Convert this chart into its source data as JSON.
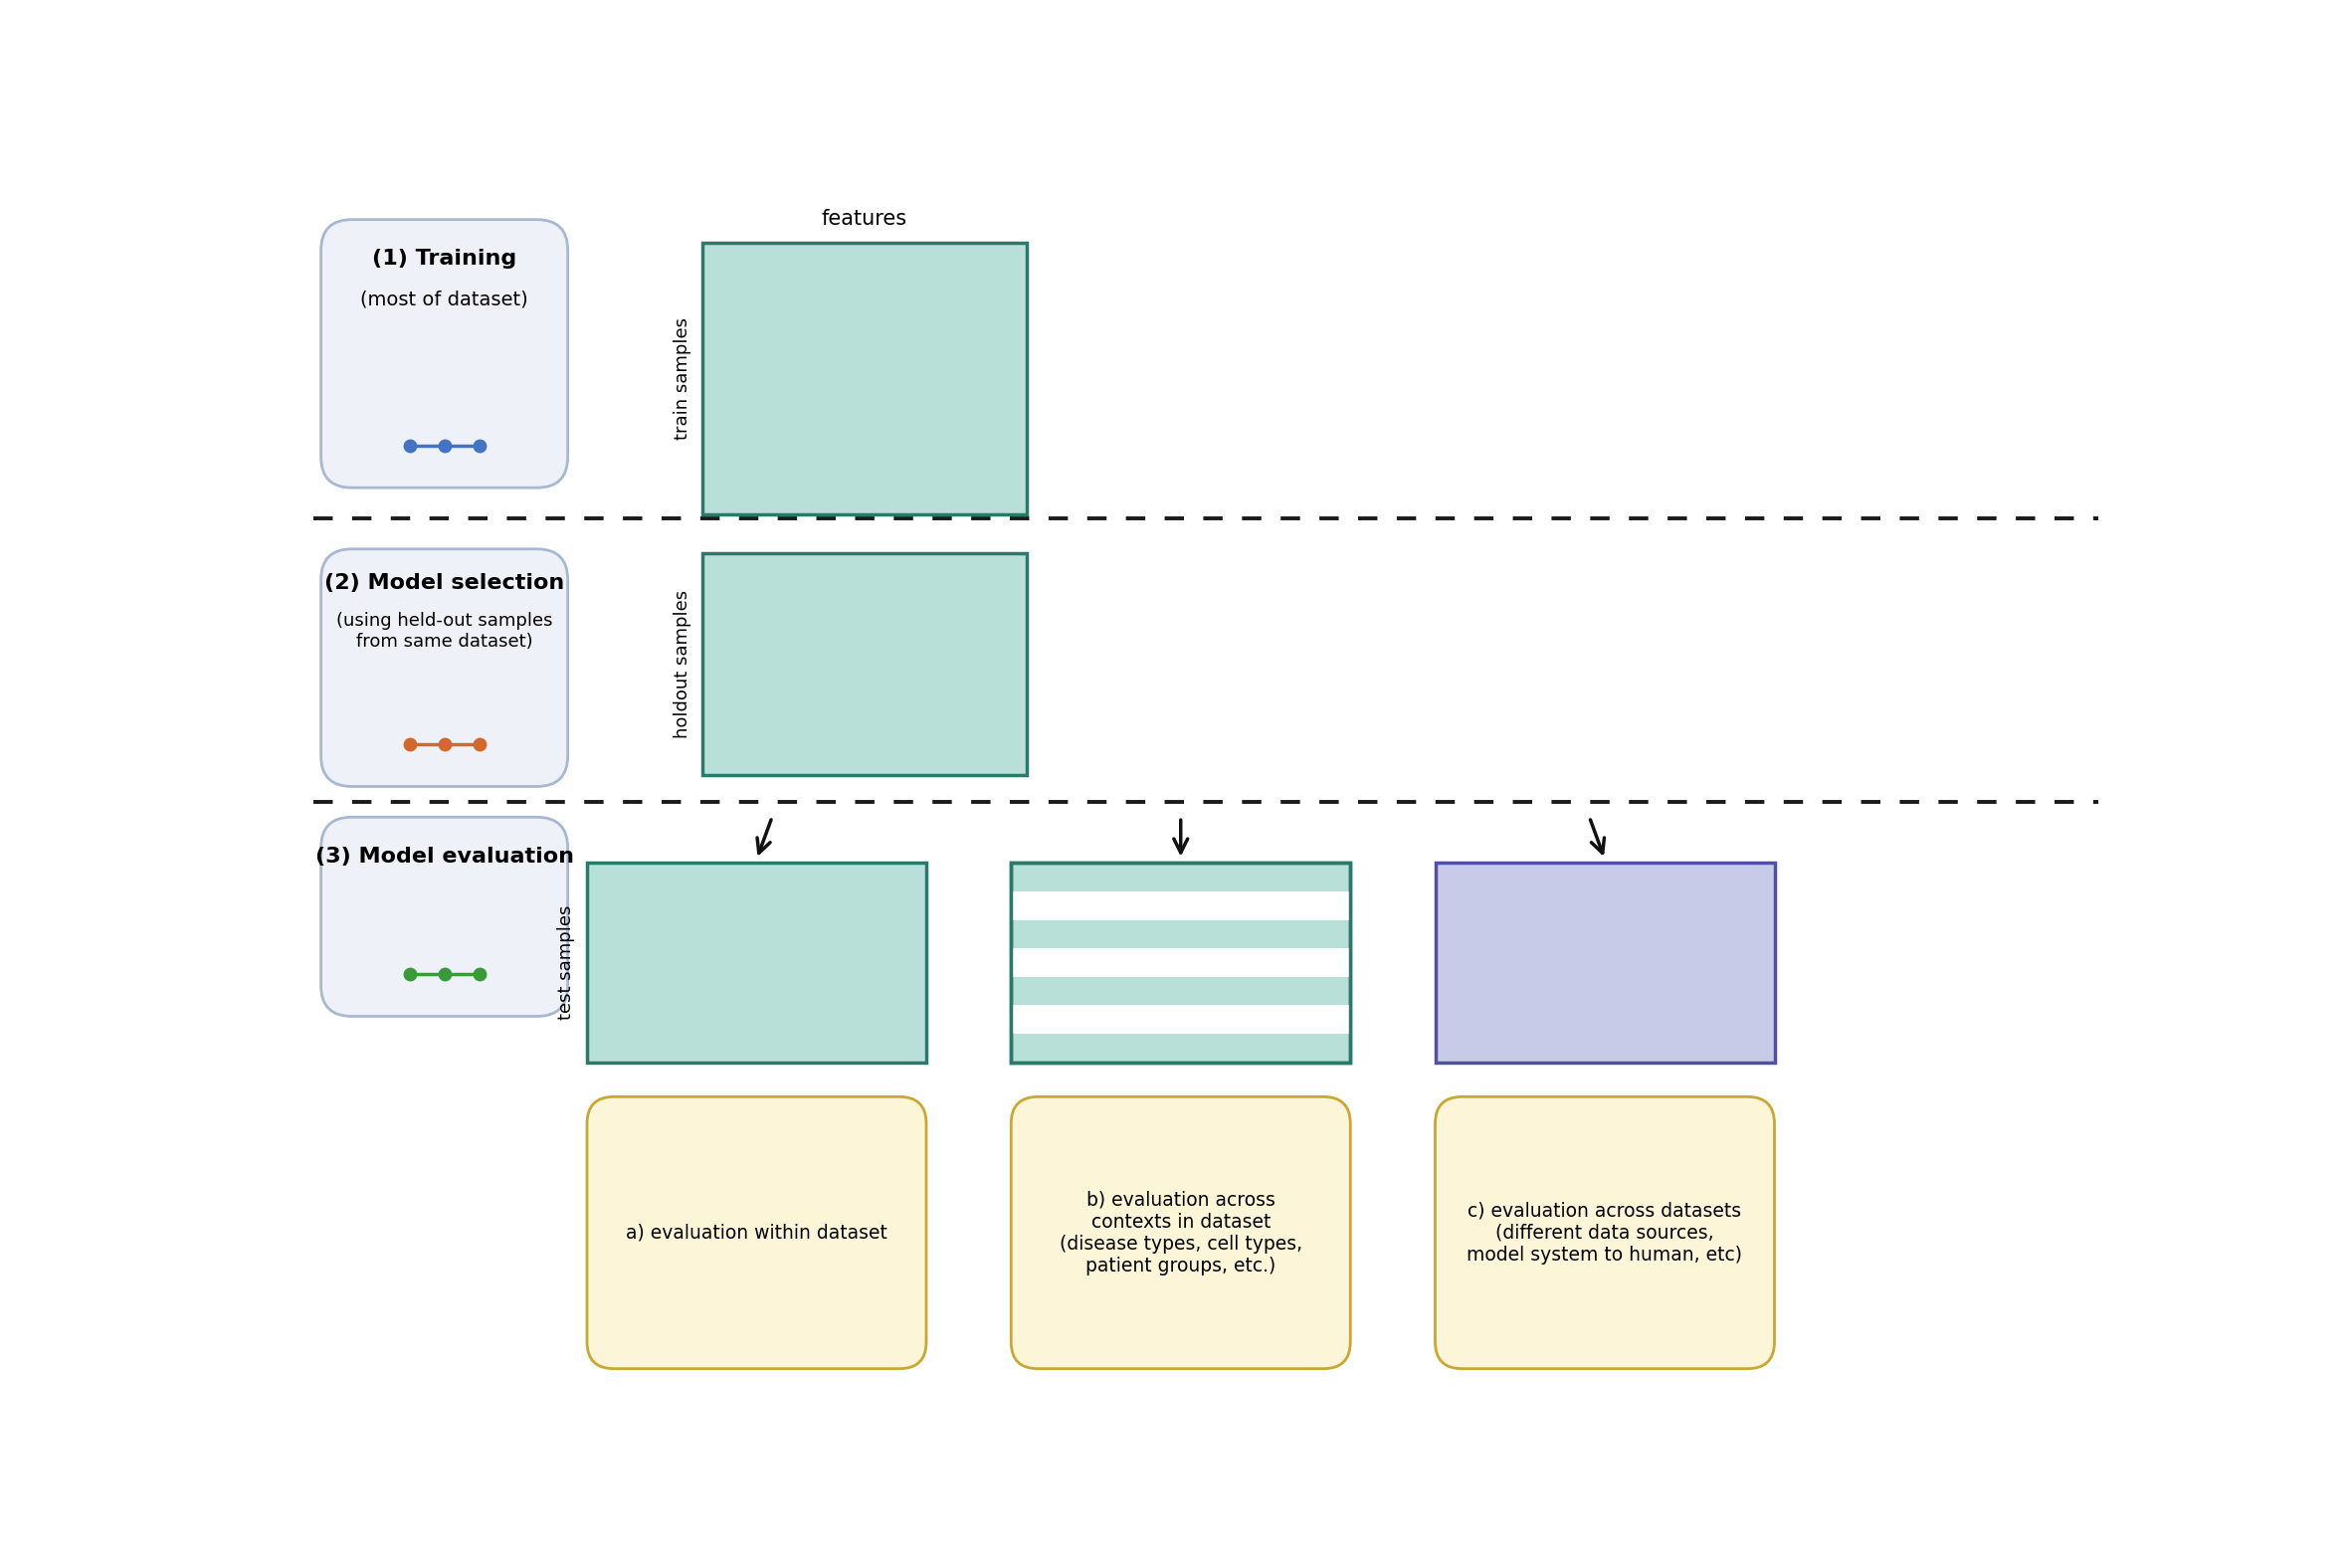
{
  "bg_color": "#ffffff",
  "panel_bg": "#eef2f8",
  "panel_border": "#a8b8d0",
  "teal_fill": "#b8e0d8",
  "teal_border": "#2a7a6a",
  "purple_fill": "#c8cbe8",
  "purple_border": "#5050a0",
  "label_box_fill": "#fdf5d8",
  "label_box_border": "#c8a830",
  "blue_dot": "#4472c4",
  "orange_dot": "#d4682a",
  "green_dot": "#3a9a3a",
  "section1_title": "(1) Training",
  "section1_sub": "(most of dataset)",
  "section2_title": "(2) Model selection",
  "section2_sub": "(using held-out samples\nfrom same dataset)",
  "section3_title": "(3) Model evaluation",
  "label_features": "features",
  "label_train": "train samples",
  "label_holdout": "holdout samples",
  "label_test": "test samples",
  "label_a": "a) evaluation within dataset",
  "label_b": "b) evaluation across\ncontexts in dataset\n(disease types, cell types,\npatient groups, etc.)",
  "label_c": "c) evaluation across datasets\n(different data sources,\nmodel system to human, etc)"
}
